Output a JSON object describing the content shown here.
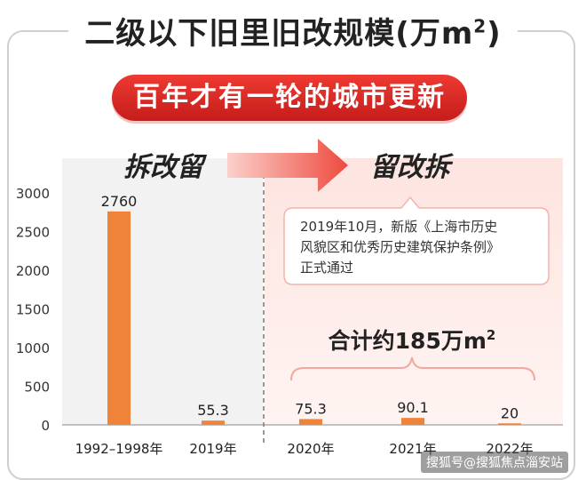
{
  "title": "二级以下旧里旧改规模(万m",
  "title_sup": "2",
  "title_close": ")",
  "banner": "百年才有一轮的城市更新",
  "colors": {
    "bar": "#f0833a",
    "red": "#e2281f",
    "banner_bg": "#d9231d",
    "panel_right": "#fde9e6",
    "panel_left": "#f0f0f0"
  },
  "chart_data": {
    "type": "bar",
    "categories": [
      "1992–1998年",
      "2019年",
      "2020年",
      "2021年",
      "2022年"
    ],
    "values": [
      2760,
      55.3,
      75.3,
      90.1,
      20
    ],
    "value_labels": [
      "2760",
      "55.3",
      "75.3",
      "90.1",
      "20"
    ],
    "ylim": [
      0,
      3000
    ],
    "yticks": [
      "0",
      "500",
      "1000",
      "1500",
      "2000",
      "2500",
      "3000"
    ],
    "ytick_values": [
      0,
      500,
      1000,
      1500,
      2000,
      2500,
      3000
    ],
    "grid": false,
    "phase_left": "拆改留",
    "phase_right": "留改拆",
    "annotation": "2019年10月，新版《上海市历史风貌区和优秀历史建筑保护条例》正式通过",
    "annotation_lines": [
      "2019年10月，新版《上海市历史",
      "风貌区和优秀历史建筑保护条例》",
      "正式通过"
    ],
    "total_label": "合计约185万m",
    "total_sup": "2"
  },
  "watermark": "搜狐号@搜狐焦点淄安站"
}
